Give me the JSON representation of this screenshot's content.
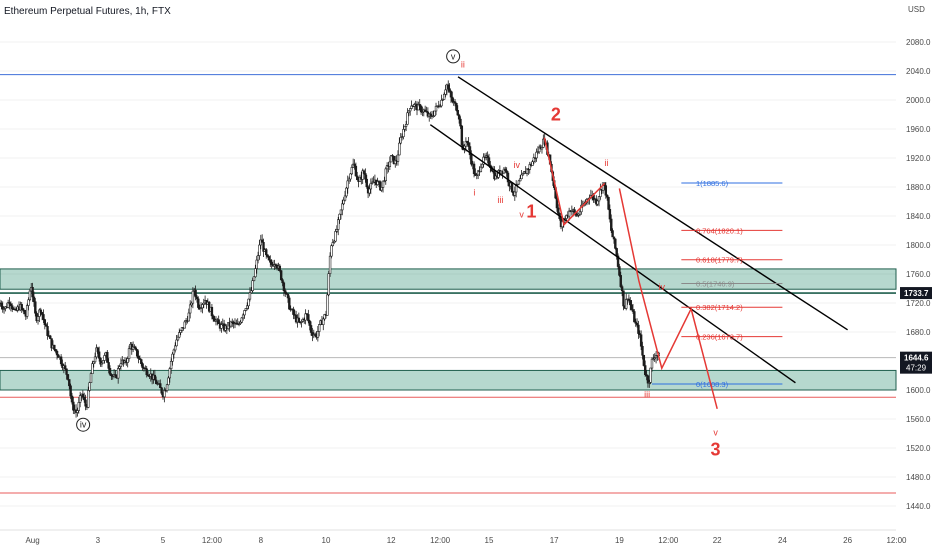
{
  "header": {
    "symbol_title": "Ethereum Perpetual Futures, 1h, FTX"
  },
  "colors": {
    "candle": "#1c1c1c",
    "zone_fill": "#2f8f72",
    "zone_line": "#1f5e4d",
    "blue_line": "#3f6fd8",
    "red_line": "#e85b5b",
    "wave_red": "#e53935",
    "fib_red": "#e53935",
    "fib_blue": "#2f6fe0",
    "axis_text": "#4a4a4a",
    "price_tag_dark": "#131722",
    "grid": "#f0f0f0"
  },
  "chart_data": {
    "type": "candlestick",
    "title": "Ethereum Perpetual Futures, 1h, FTX",
    "y_axis": {
      "currency": "USD",
      "range": [
        1410,
        2090
      ],
      "ticks": [
        "2080.0",
        "2040.0",
        "2000.0",
        "1960.0",
        "1920.0",
        "1880.0",
        "1840.0",
        "1800.0",
        "1760.0",
        "1720.0",
        "1680.0",
        "1600.0",
        "1560.0",
        "1520.0",
        "1480.0",
        "1440.0"
      ],
      "tick_values": [
        2080,
        2040,
        2000,
        1960,
        1920,
        1880,
        1840,
        1800,
        1760,
        1720,
        1680,
        1600,
        1560,
        1520,
        1480,
        1440
      ]
    },
    "x_axis": {
      "ticks": [
        "Aug",
        "3",
        "5",
        "12:00",
        "8",
        "10",
        "12",
        "12:00",
        "15",
        "17",
        "19",
        "12:00",
        "22",
        "24",
        "26",
        "12:00"
      ],
      "tick_days": [
        1,
        3,
        5,
        6.5,
        8,
        10,
        12,
        13.5,
        15,
        17,
        19,
        20.5,
        22,
        24,
        26,
        27.5
      ]
    },
    "price_path": [
      [
        0.0,
        1720
      ],
      [
        0.15,
        1712
      ],
      [
        0.3,
        1724
      ],
      [
        0.45,
        1706
      ],
      [
        0.6,
        1716
      ],
      [
        0.8,
        1702
      ],
      [
        0.95,
        1747
      ],
      [
        1.1,
        1698
      ],
      [
        1.25,
        1712
      ],
      [
        1.4,
        1686
      ],
      [
        1.6,
        1660
      ],
      [
        1.8,
        1648
      ],
      [
        1.95,
        1632
      ],
      [
        2.1,
        1617
      ],
      [
        2.2,
        1580
      ],
      [
        2.35,
        1568
      ],
      [
        2.5,
        1595
      ],
      [
        2.65,
        1575
      ],
      [
        2.8,
        1625
      ],
      [
        2.95,
        1655
      ],
      [
        3.1,
        1638
      ],
      [
        3.25,
        1648
      ],
      [
        3.4,
        1622
      ],
      [
        3.55,
        1615
      ],
      [
        3.7,
        1640
      ],
      [
        3.85,
        1635
      ],
      [
        4.0,
        1662
      ],
      [
        4.2,
        1650
      ],
      [
        4.4,
        1630
      ],
      [
        4.6,
        1622
      ],
      [
        4.8,
        1610
      ],
      [
        5.0,
        1595
      ],
      [
        5.1,
        1605
      ],
      [
        5.25,
        1640
      ],
      [
        5.4,
        1668
      ],
      [
        5.6,
        1685
      ],
      [
        5.8,
        1705
      ],
      [
        5.95,
        1740
      ],
      [
        6.1,
        1715
      ],
      [
        6.3,
        1725
      ],
      [
        6.5,
        1705
      ],
      [
        6.7,
        1690
      ],
      [
        6.9,
        1685
      ],
      [
        7.1,
        1692
      ],
      [
        7.3,
        1688
      ],
      [
        7.45,
        1706
      ],
      [
        7.6,
        1722
      ],
      [
        7.7,
        1735
      ],
      [
        7.85,
        1770
      ],
      [
        8.0,
        1808
      ],
      [
        8.15,
        1785
      ],
      [
        8.3,
        1772
      ],
      [
        8.45,
        1778
      ],
      [
        8.6,
        1760
      ],
      [
        8.75,
        1735
      ],
      [
        8.9,
        1712
      ],
      [
        9.05,
        1700
      ],
      [
        9.2,
        1690
      ],
      [
        9.4,
        1705
      ],
      [
        9.55,
        1680
      ],
      [
        9.7,
        1675
      ],
      [
        9.85,
        1693
      ],
      [
        10.0,
        1705
      ],
      [
        10.15,
        1800
      ],
      [
        10.3,
        1815
      ],
      [
        10.5,
        1855
      ],
      [
        10.7,
        1895
      ],
      [
        10.85,
        1912
      ],
      [
        11.0,
        1885
      ],
      [
        11.15,
        1902
      ],
      [
        11.3,
        1875
      ],
      [
        11.5,
        1890
      ],
      [
        11.7,
        1878
      ],
      [
        11.85,
        1903
      ],
      [
        12.0,
        1920
      ],
      [
        12.15,
        1913
      ],
      [
        12.3,
        1948
      ],
      [
        12.45,
        1970
      ],
      [
        12.6,
        1995
      ],
      [
        12.8,
        1990
      ],
      [
        13.0,
        1985
      ],
      [
        13.2,
        1975
      ],
      [
        13.4,
        1990
      ],
      [
        13.55,
        2000
      ],
      [
        13.7,
        2022
      ],
      [
        13.85,
        2000
      ],
      [
        14.0,
        1990
      ],
      [
        14.1,
        1975
      ],
      [
        14.2,
        1925
      ],
      [
        14.3,
        1948
      ],
      [
        14.45,
        1918
      ],
      [
        14.6,
        1890
      ],
      [
        14.75,
        1912
      ],
      [
        14.9,
        1920
      ],
      [
        15.05,
        1910
      ],
      [
        15.2,
        1892
      ],
      [
        15.35,
        1903
      ],
      [
        15.5,
        1905
      ],
      [
        15.6,
        1888
      ],
      [
        15.75,
        1872
      ],
      [
        15.9,
        1884
      ],
      [
        16.1,
        1900
      ],
      [
        16.3,
        1912
      ],
      [
        16.5,
        1930
      ],
      [
        16.7,
        1945
      ],
      [
        16.85,
        1920
      ],
      [
        17.0,
        1880
      ],
      [
        17.1,
        1850
      ],
      [
        17.2,
        1825
      ],
      [
        17.35,
        1838
      ],
      [
        17.5,
        1850
      ],
      [
        17.7,
        1840
      ],
      [
        17.9,
        1855
      ],
      [
        18.1,
        1870
      ],
      [
        18.3,
        1860
      ],
      [
        18.5,
        1885
      ],
      [
        18.6,
        1870
      ],
      [
        18.75,
        1820
      ],
      [
        18.9,
        1790
      ],
      [
        19.05,
        1745
      ],
      [
        19.15,
        1712
      ],
      [
        19.25,
        1730
      ],
      [
        19.35,
        1715
      ],
      [
        19.5,
        1690
      ],
      [
        19.6,
        1680
      ],
      [
        19.7,
        1650
      ],
      [
        19.8,
        1622
      ],
      [
        19.9,
        1610
      ],
      [
        20.0,
        1640
      ],
      [
        20.1,
        1650
      ],
      [
        20.25,
        1645
      ]
    ],
    "horizontal_lines": [
      {
        "price": 2035,
        "color": "blue"
      },
      {
        "price": 1590,
        "color": "red"
      },
      {
        "price": 1458,
        "color": "red"
      },
      {
        "price": 1733.7,
        "color": "dark"
      },
      {
        "price": 1644.6,
        "color": "grey"
      }
    ],
    "zones": [
      {
        "from": 1739,
        "to": 1767
      },
      {
        "from": 1600,
        "to": 1627
      }
    ],
    "channel": [
      {
        "p1": [
          14.05,
          2032
        ],
        "p2": [
          26.0,
          1683
        ]
      },
      {
        "p1": [
          13.2,
          1966
        ],
        "p2": [
          24.4,
          1610
        ]
      }
    ],
    "projection_path": [
      [
        19.0,
        1878
      ],
      [
        19.6,
        1750
      ],
      [
        20.3,
        1630
      ],
      [
        21.2,
        1712
      ],
      [
        22.0,
        1574
      ]
    ],
    "wave_red_path": [
      [
        16.7,
        1948
      ],
      [
        17.3,
        1828
      ],
      [
        18.55,
        1885
      ]
    ],
    "fib_levels": [
      {
        "label": "1(1885.6)",
        "price": 1885.6,
        "color": "blue",
        "x_from": 20.9
      },
      {
        "label": "0.764(1820.1)",
        "price": 1820.1,
        "color": "red",
        "x_from": 20.9
      },
      {
        "label": "0.618(1779.7)",
        "price": 1779.7,
        "color": "red",
        "x_from": 20.9
      },
      {
        "label": "0.5(1746.9)",
        "price": 1746.9,
        "color": "grey",
        "x_from": 20.9
      },
      {
        "label": "0.382(1714.2)",
        "price": 1714.2,
        "color": "red",
        "x_from": 20.9
      },
      {
        "label": "0.236(1673.7)",
        "price": 1673.7,
        "color": "red",
        "x_from": 20.9
      },
      {
        "label": "0(1608.3)",
        "price": 1608.3,
        "color": "blue",
        "x_from": 20.0
      }
    ],
    "wave_labels": [
      {
        "text": "v",
        "x": 13.9,
        "y": 2056,
        "color": "dark",
        "circled": true,
        "size": "sm"
      },
      {
        "text": "iv",
        "x": 2.55,
        "y": 1548,
        "color": "dark",
        "circled": true,
        "size": "sm"
      },
      {
        "text": "ii",
        "x": 14.2,
        "y": 2045,
        "color": "red",
        "circled": false,
        "size": "sm"
      },
      {
        "text": "i",
        "x": 14.55,
        "y": 1868,
        "color": "red",
        "circled": false,
        "size": "sm"
      },
      {
        "text": "iii",
        "x": 15.35,
        "y": 1858,
        "color": "red",
        "circled": false,
        "size": "sm"
      },
      {
        "text": "iv",
        "x": 15.85,
        "y": 1906,
        "color": "red",
        "circled": false,
        "size": "sm"
      },
      {
        "text": "v",
        "x": 16.0,
        "y": 1838,
        "color": "red",
        "circled": false,
        "size": "sm"
      },
      {
        "text": "1",
        "x": 16.3,
        "y": 1838,
        "color": "red",
        "circled": false,
        "size": "lg"
      },
      {
        "text": "2",
        "x": 17.05,
        "y": 1972,
        "color": "red",
        "circled": false,
        "size": "lg"
      },
      {
        "text": "ii",
        "x": 18.6,
        "y": 1909,
        "color": "red",
        "circled": false,
        "size": "sm"
      },
      {
        "text": "iv",
        "x": 20.3,
        "y": 1738,
        "color": "red",
        "circled": false,
        "size": "sm"
      },
      {
        "text": "iii",
        "x": 19.85,
        "y": 1590,
        "color": "red",
        "circled": false,
        "size": "sm"
      },
      {
        "text": "v",
        "x": 21.95,
        "y": 1537,
        "color": "red",
        "circled": false,
        "size": "sm"
      },
      {
        "text": "3",
        "x": 21.95,
        "y": 1510,
        "color": "red",
        "circled": false,
        "size": "lg"
      }
    ],
    "price_tags": [
      {
        "label": "1733.7",
        "sub": "",
        "price": 1733.7,
        "style": "dark"
      },
      {
        "label": "1644.6",
        "sub": "47:29",
        "price": 1644.6,
        "style": "dark"
      }
    ]
  }
}
